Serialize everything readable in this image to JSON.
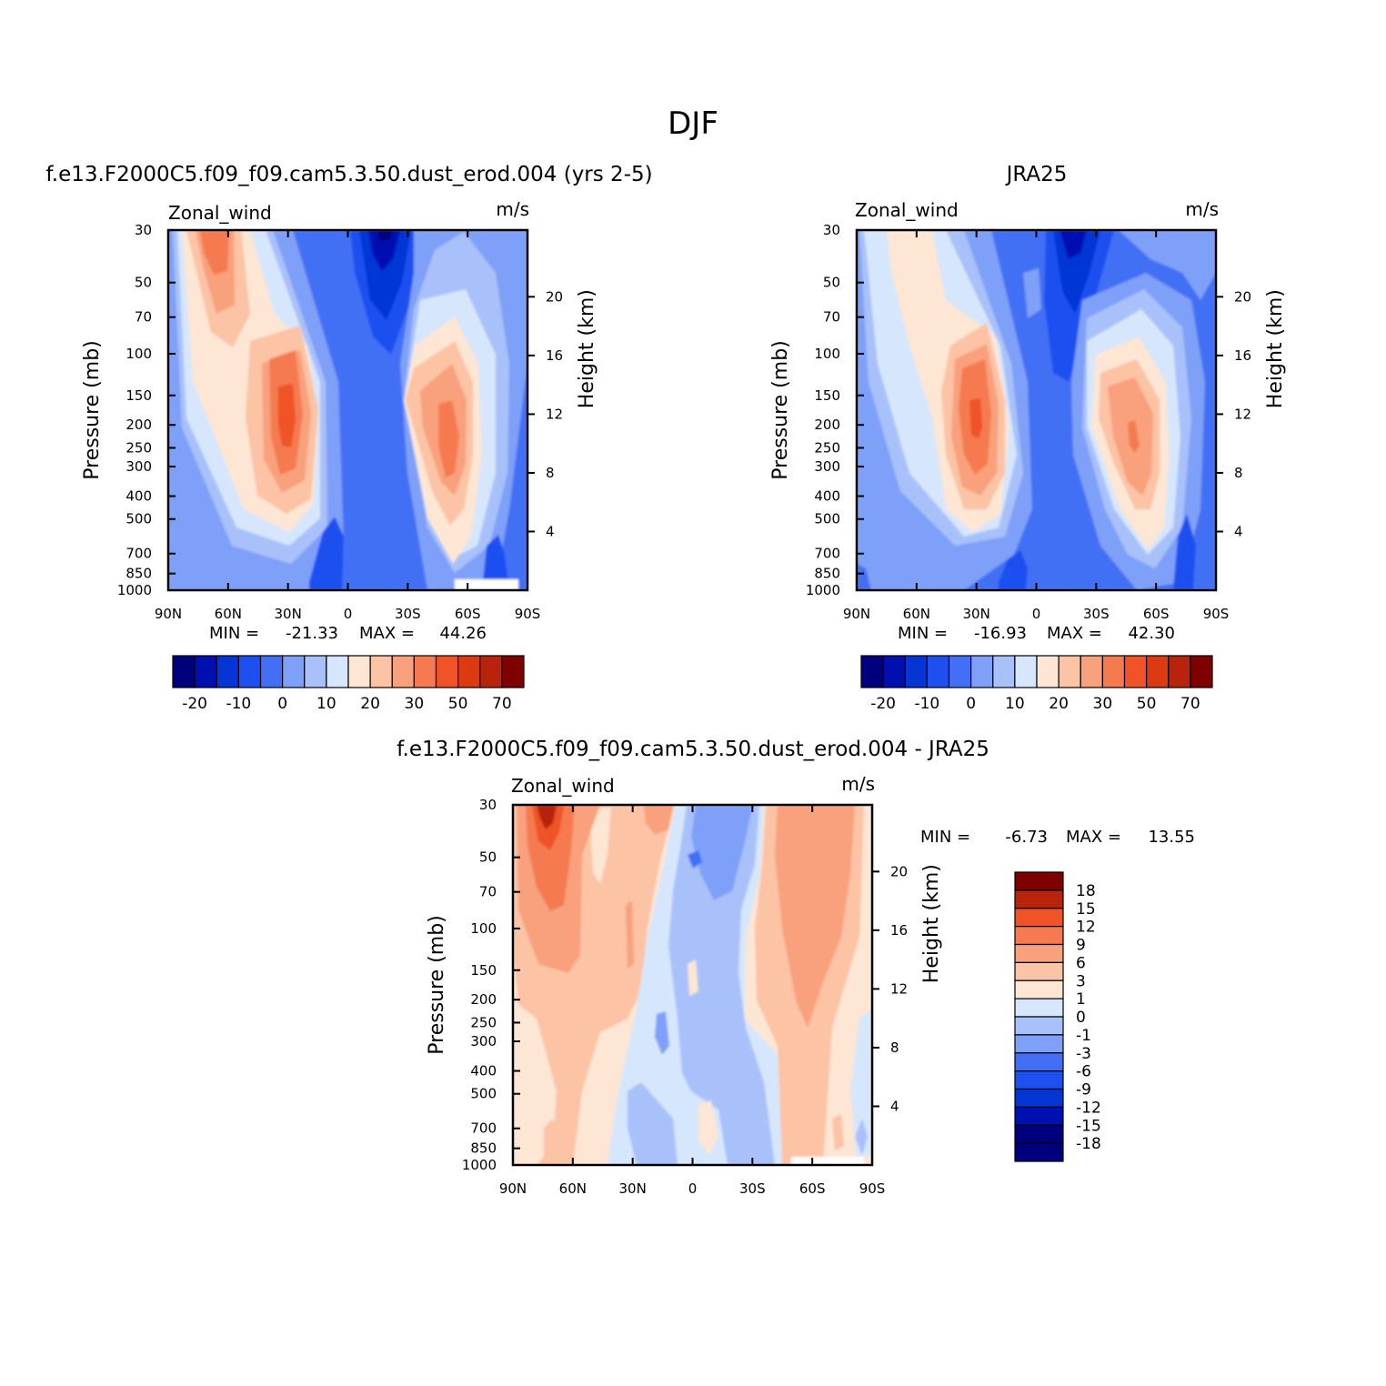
{
  "figure_title": "DJF",
  "colors": {
    "cb1": [
      "#00007f",
      "#0010b0",
      "#0635d6",
      "#1e4ff0",
      "#426ff5",
      "#7fa0f8",
      "#a9c1fa",
      "#d6e6fd",
      "#fde6d4",
      "#fcc3a5",
      "#f9a07c",
      "#f57a50",
      "#ef5326",
      "#dc3a10",
      "#b7230b",
      "#800000"
    ],
    "cb3": [
      "#800000",
      "#b7230b",
      "#ef5326",
      "#f57a50",
      "#f9a07c",
      "#fcc3a5",
      "#fde6d4",
      "#d6e6fd",
      "#a9c1fa",
      "#7fa0f8",
      "#426ff5",
      "#1e4ff0",
      "#0635d6",
      "#0010b0",
      "#00007f"
    ]
  },
  "chart_data": [
    {
      "type": "heatmap",
      "title": "f.e13.F2000C5.f09_f09.cam5.3.50.dust_erod.004 (yrs 2-5)",
      "variable": "Zonal_wind",
      "units": "m/s",
      "xlabel": "",
      "ylabel": "Pressure (mb)",
      "y2label": "Height (km)",
      "xticks": [
        "90N",
        "60N",
        "30N",
        "0",
        "30S",
        "60S",
        "90S"
      ],
      "yticks": [
        "30",
        "50",
        "70",
        "100",
        "150",
        "200",
        "250",
        "300",
        "400",
        "500",
        "700",
        "850",
        "1000"
      ],
      "y2ticks": [
        "20",
        "16",
        "12",
        "8",
        "4"
      ],
      "stats": {
        "min_label": "MIN =",
        "min": "-21.33",
        "max_label": "MAX =",
        "max": "44.26"
      },
      "colorbar_labels": [
        "-20",
        "-10",
        "0",
        "10",
        "20",
        "30",
        "50",
        "70"
      ],
      "features": [
        {
          "lat": -6,
          "p": 30,
          "value": -21.33
        },
        {
          "lat": 30,
          "p": 200,
          "value": 44.26
        },
        {
          "lat": -50,
          "p": 200,
          "value": 35
        },
        {
          "lat": 62,
          "p": 40,
          "value": 25
        }
      ]
    },
    {
      "type": "heatmap",
      "title": "JRA25",
      "variable": "Zonal_wind",
      "units": "m/s",
      "xlabel": "",
      "ylabel": "Pressure (mb)",
      "y2label": "Height (km)",
      "xticks": [
        "90N",
        "60N",
        "30N",
        "0",
        "30S",
        "60S",
        "90S"
      ],
      "yticks": [
        "30",
        "50",
        "70",
        "100",
        "150",
        "200",
        "250",
        "300",
        "400",
        "500",
        "700",
        "850",
        "1000"
      ],
      "y2ticks": [
        "20",
        "16",
        "12",
        "8",
        "4"
      ],
      "stats": {
        "min_label": "MIN =",
        "min": "-16.93",
        "max_label": "MAX =",
        "max": "42.30"
      },
      "colorbar_labels": [
        "-20",
        "-10",
        "0",
        "10",
        "20",
        "30",
        "50",
        "70"
      ],
      "features": [
        {
          "lat": -6,
          "p": 30,
          "value": -16.93
        },
        {
          "lat": 30,
          "p": 200,
          "value": 42.3
        },
        {
          "lat": -48,
          "p": 230,
          "value": 38
        },
        {
          "lat": 62,
          "p": 40,
          "value": 18
        }
      ]
    },
    {
      "type": "heatmap",
      "title": "f.e13.F2000C5.f09_f09.cam5.3.50.dust_erod.004 - JRA25",
      "variable": "Zonal_wind",
      "units": "m/s",
      "xlabel": "",
      "ylabel": "Pressure (mb)",
      "y2label": "Height (km)",
      "xticks": [
        "90N",
        "60N",
        "30N",
        "0",
        "30S",
        "60S",
        "90S"
      ],
      "yticks": [
        "30",
        "50",
        "70",
        "100",
        "150",
        "200",
        "250",
        "300",
        "400",
        "500",
        "700",
        "850",
        "1000"
      ],
      "y2ticks": [
        "20",
        "16",
        "12",
        "8",
        "4"
      ],
      "stats": {
        "min_label": "MIN =",
        "min": "-6.73",
        "max_label": "MAX =",
        "max": "13.55"
      },
      "colorbar_labels": [
        "18",
        "15",
        "12",
        "9",
        "6",
        "3",
        "1",
        "0",
        "-1",
        "-3",
        "-6",
        "-9",
        "-12",
        "-15",
        "-18"
      ],
      "features": [
        {
          "lat": 72,
          "p": 30,
          "value": 13.55
        },
        {
          "lat": 0,
          "p": 45,
          "value": -6.73
        },
        {
          "lat": -55,
          "p": 100,
          "value": 5
        }
      ]
    }
  ]
}
